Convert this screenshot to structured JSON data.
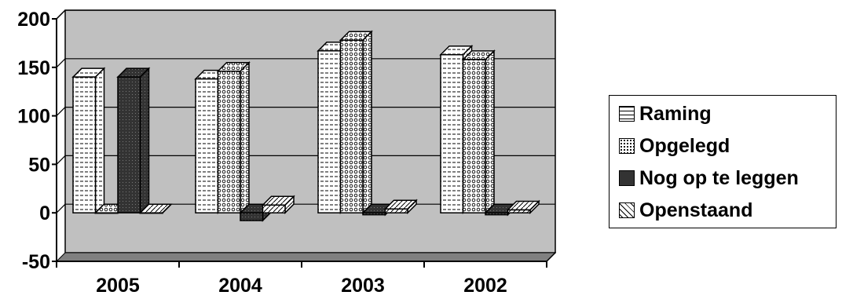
{
  "chart_data": {
    "type": "bar",
    "categories": [
      "2005",
      "2004",
      "2003",
      "2002"
    ],
    "series": [
      {
        "name": "Raming",
        "values": [
          140,
          138,
          167,
          163
        ],
        "pattern": "hlines"
      },
      {
        "name": "Opgelegd",
        "values": [
          0,
          146,
          178,
          158
        ],
        "pattern": "dots"
      },
      {
        "name": "Nog op te leggen",
        "values": [
          140,
          -8,
          -2,
          -2
        ],
        "pattern": "dark"
      },
      {
        "name": "Openstaand",
        "values": [
          0,
          8,
          4,
          3
        ],
        "pattern": "diagonal"
      }
    ],
    "ylim": [
      -50,
      200
    ],
    "yticks": [
      "200",
      "150",
      "100",
      "50",
      "0",
      "-50"
    ],
    "ytick_values": [
      200,
      150,
      100,
      50,
      0,
      -50
    ],
    "grid": true,
    "three_d": true,
    "legend_position": "right",
    "colors": {
      "plot_wall": "#c0c0c0",
      "floor": "#808080",
      "bar_face": "#ffffff",
      "dark_fill": "#333333"
    }
  }
}
